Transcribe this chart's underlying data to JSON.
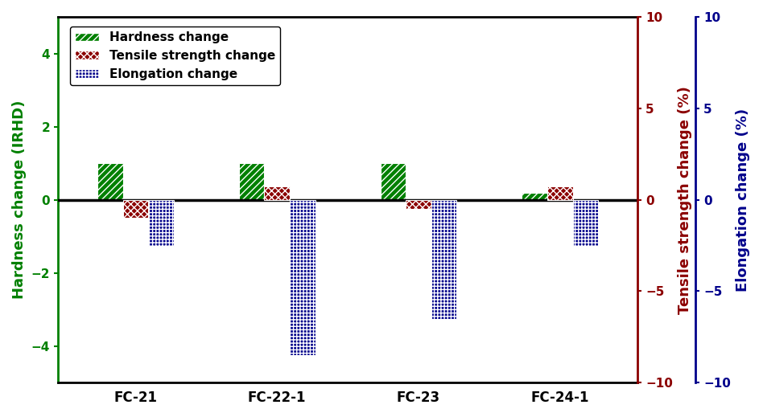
{
  "categories": [
    "FC-21",
    "FC-22-1",
    "FC-23",
    "FC-24-1"
  ],
  "hardness": [
    1.0,
    1.0,
    1.0,
    0.2
  ],
  "tensile": [
    -1.0,
    0.75,
    -0.5,
    0.75
  ],
  "elongation": [
    -2.5,
    -8.5,
    -6.5,
    -2.5
  ],
  "hardness_color": "#008000",
  "tensile_color": "#8B0000",
  "elongation_color": "#00008B",
  "left_ylim": [
    -5,
    5
  ],
  "right_ylim": [
    -10,
    10
  ],
  "left_yticks": [
    -4,
    -2,
    0,
    2,
    4
  ],
  "right_yticks": [
    -10,
    -5,
    0,
    5,
    10
  ],
  "ylabel_left": "Hardness change (IRHD)",
  "ylabel_right_tensile": "Tensile strength change (%)",
  "ylabel_right_elongation": "Elongation change (%)",
  "legend_labels": [
    "Hardness change",
    "Tensile strength change",
    "Elongation change"
  ],
  "bar_width": 0.18,
  "figsize": [
    9.48,
    5.19
  ],
  "dpi": 100
}
